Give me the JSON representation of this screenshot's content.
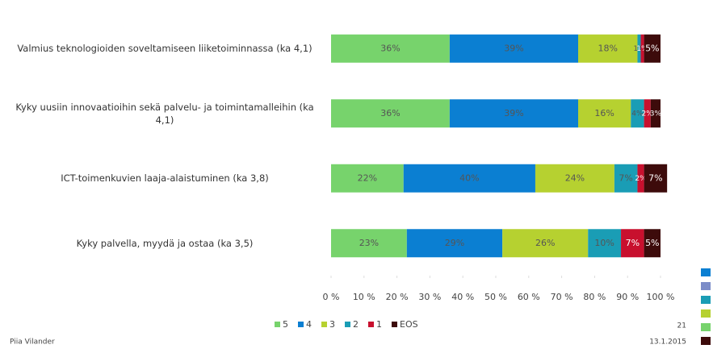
{
  "chart_data": {
    "type": "stacked-barh",
    "categories": [
      "Valmius teknologioiden soveltamiseen liiketoiminnassa (ka 4,1)",
      "Kyky uusiin innovaatioihin sekä palvelu- ja toimintamalleihin (ka 4,1)",
      "ICT-toimenkuvien laaja-alaistuminen (ka 3,8)",
      "Kyky palvella, myydä ja ostaa (ka 3,5)"
    ],
    "series": [
      {
        "name": "5",
        "color": "#77d36c",
        "values": [
          36,
          36,
          22,
          23
        ],
        "value_labels": [
          "36%",
          "36%",
          "22%",
          "23%"
        ]
      },
      {
        "name": "4",
        "color": "#0b7fd2",
        "values": [
          39,
          39,
          40,
          29
        ],
        "value_labels": [
          "39%",
          "39%",
          "40%",
          "29%"
        ]
      },
      {
        "name": "3",
        "color": "#b6d130",
        "values": [
          18,
          16,
          24,
          26
        ],
        "value_labels": [
          "18%",
          "16%",
          "24%",
          "26%"
        ]
      },
      {
        "name": "2",
        "color": "#1a9db5",
        "values": [
          1,
          4,
          7,
          10
        ],
        "value_labels": [
          "1%",
          "4%",
          "7%",
          "10%"
        ]
      },
      {
        "name": "1",
        "color": "#c8102e",
        "values": [
          1,
          2,
          2,
          7
        ],
        "value_labels": [
          "1%",
          "2%",
          "2%",
          "7%"
        ]
      },
      {
        "name": "EOS",
        "color": "#3d0b0b",
        "values": [
          5,
          3,
          7,
          5
        ],
        "value_labels": [
          "5%",
          "3%",
          "7%",
          "5%"
        ]
      }
    ],
    "xlim": [
      0,
      100
    ],
    "xticks": [
      {
        "value": 0,
        "label": "0 %"
      },
      {
        "value": 10,
        "label": "10 %"
      },
      {
        "value": 20,
        "label": "20 %"
      },
      {
        "value": 30,
        "label": "30 %"
      },
      {
        "value": 40,
        "label": "40 %"
      },
      {
        "value": 50,
        "label": "50 %"
      },
      {
        "value": 60,
        "label": "60 %"
      },
      {
        "value": 70,
        "label": "70 %"
      },
      {
        "value": 80,
        "label": "80 %"
      },
      {
        "value": 90,
        "label": "90 %"
      },
      {
        "value": 100,
        "label": "100 %"
      }
    ],
    "legend": "bottom"
  },
  "footer": {
    "author": "Piia Vilander",
    "page": "21",
    "date": "13.1.2015"
  }
}
